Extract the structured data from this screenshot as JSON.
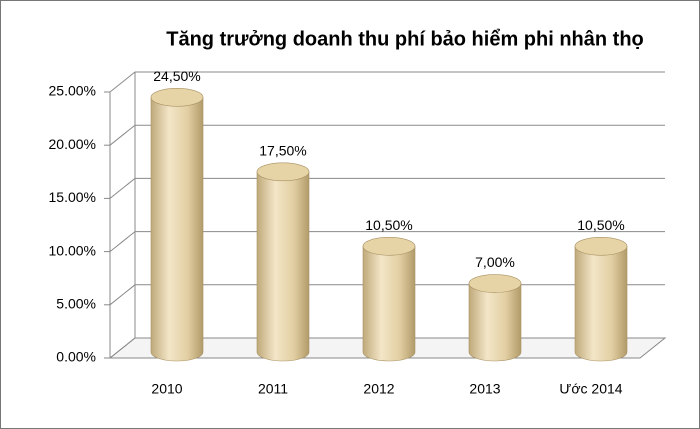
{
  "chart_data": {
    "type": "cylinder-bar",
    "title": "Tăng trưởng doanh thu phí bảo hiểm phi nhân thọ",
    "categories": [
      "2010",
      "2011",
      "2012",
      "2013",
      "Ước 2014"
    ],
    "values": [
      24.5,
      17.5,
      10.5,
      7,
      10.5
    ],
    "value_labels": [
      "24,50%",
      "17,50%",
      "10,50%",
      "7,00%",
      "10,50%"
    ],
    "color": "#e8d6ae",
    "ylim": [
      0,
      25
    ],
    "yticks": [
      {
        "value": 0,
        "label": "0.00%"
      },
      {
        "value": 5,
        "label": "5.00%"
      },
      {
        "value": 10,
        "label": "10.00%"
      },
      {
        "value": 15,
        "label": "15.00%"
      },
      {
        "value": 20,
        "label": "20.00%"
      },
      {
        "value": 25,
        "label": "25.00%"
      }
    ],
    "grid": true
  }
}
